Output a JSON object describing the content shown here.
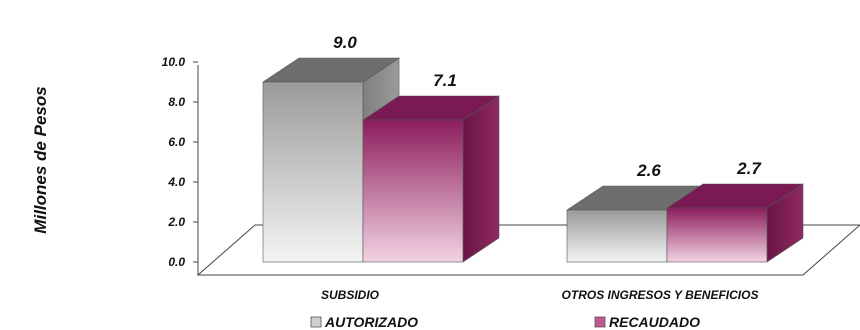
{
  "chart_data": {
    "type": "bar",
    "title": "",
    "xlabel": "",
    "ylabel": "Millones de Pesos",
    "ylim": [
      0,
      10
    ],
    "yticks": [
      "0.0",
      "2.0",
      "4.0",
      "6.0",
      "8.0",
      "10.0"
    ],
    "categories": [
      "SUBSIDIO",
      "OTROS INGRESOS Y BENEFICIOS"
    ],
    "series": [
      {
        "name": "AUTORIZADO",
        "values": [
          9.0,
          2.6
        ],
        "labels": [
          "9.0",
          "2.6"
        ],
        "color": "#c8c8c8"
      },
      {
        "name": "RECAUDADO",
        "values": [
          7.1,
          2.7
        ],
        "labels": [
          "7.1",
          "2.7"
        ],
        "color": "#9b2d6b"
      }
    ],
    "legend_position": "bottom",
    "grid": false,
    "style": "3d-bars"
  }
}
